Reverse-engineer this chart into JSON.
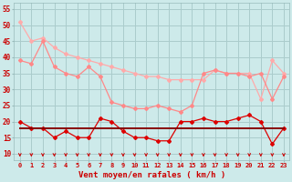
{
  "x": [
    0,
    1,
    2,
    3,
    4,
    5,
    6,
    7,
    8,
    9,
    10,
    11,
    12,
    13,
    14,
    15,
    16,
    17,
    18,
    19,
    20,
    21,
    22,
    23
  ],
  "line1": [
    51,
    45,
    46,
    43,
    41,
    40,
    39,
    38,
    37,
    36,
    35,
    34,
    34,
    33,
    33,
    33,
    33,
    36,
    35,
    35,
    35,
    27,
    39,
    35
  ],
  "line2": [
    39,
    38,
    45,
    37,
    35,
    34,
    37,
    34,
    26,
    25,
    24,
    24,
    25,
    24,
    23,
    25,
    35,
    36,
    35,
    35,
    34,
    35,
    27,
    34
  ],
  "line3": [
    20,
    18,
    18,
    15,
    17,
    15,
    15,
    21,
    20,
    17,
    15,
    15,
    14,
    14,
    20,
    20,
    21,
    20,
    20,
    21,
    22,
    20,
    13,
    18
  ],
  "line4": [
    18,
    18,
    18,
    18,
    18,
    18,
    18,
    18,
    18,
    18,
    18,
    18,
    18,
    18,
    18,
    18,
    18,
    18,
    18,
    18,
    18,
    18,
    18,
    18
  ],
  "xlabel": "Vent moyen/en rafales ( km/h )",
  "ylim": [
    8,
    57
  ],
  "yticks": [
    10,
    15,
    20,
    25,
    30,
    35,
    40,
    45,
    50,
    55
  ],
  "bg_color": "#cdeaea",
  "grid_color": "#aacccc",
  "line1_color": "#ffaaaa",
  "line2_color": "#ff8888",
  "line3_color": "#dd0000",
  "line4_color": "#880000",
  "arrow_color": "#cc0000",
  "tick_color": "#cc0000",
  "label_color": "#cc0000"
}
